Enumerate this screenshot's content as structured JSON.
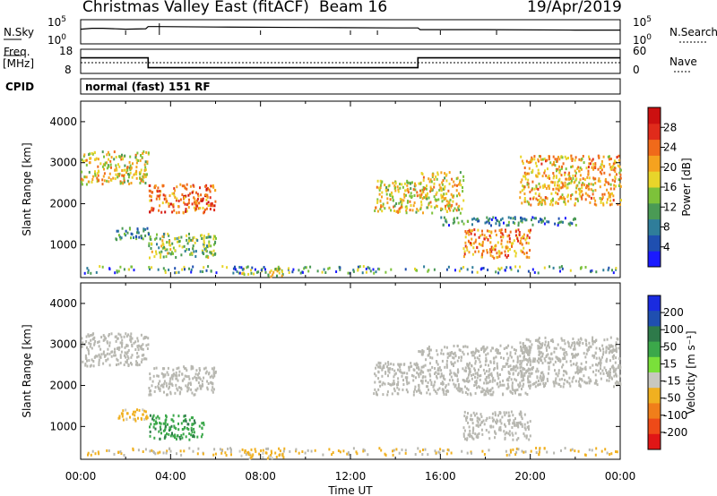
{
  "header": {
    "title": "Christmas Valley East (fitACF)",
    "beam": "Beam 16",
    "date": "19/Apr/2019"
  },
  "strip_labels": {
    "nsky": "N.Sky",
    "freq": "Freq.",
    "mhz": "[MHz]",
    "cpid": "CPID",
    "nsearch": "N.Search",
    "nave": "Nave",
    "mode_text": "normal (fast) 151 RF"
  },
  "colors": {
    "power_scale": [
      "#1a1aff",
      "#1f4fb0",
      "#2f7d9a",
      "#4a9a55",
      "#7dc23a",
      "#e8d52a",
      "#f5a21f",
      "#f06a1a",
      "#e02b1b",
      "#cc1010"
    ],
    "velocity_scale": [
      "#1a2be0",
      "#1f4fb0",
      "#2e7a4a",
      "#3ba84a",
      "#7ae03a",
      "#c8c8c0",
      "#f0b020",
      "#f07e1a",
      "#ee4a18",
      "#e01616"
    ],
    "ground_scatter": "#b7b7b0"
  },
  "chart_data": [
    {
      "type": "line",
      "name": "noise-sky-and-search",
      "yticks": [
        "10^5",
        "10^0"
      ],
      "y2ticks": [
        "10^5",
        "10^0"
      ],
      "series": [
        {
          "name": "N.Sky",
          "x": [
            0,
            0.5,
            1,
            2,
            2.9,
            3.0,
            3.5,
            6,
            10,
            14,
            15,
            15.1,
            18,
            22,
            24
          ],
          "y": [
            3.0,
            3.2,
            3.2,
            3.0,
            3.1,
            3.6,
            3.6,
            3.5,
            3.4,
            3.3,
            3.3,
            2.9,
            2.9,
            2.8,
            2.8
          ]
        }
      ]
    },
    {
      "type": "line",
      "name": "frequency-and-nave",
      "yticks": [
        18,
        8
      ],
      "y2ticks": [
        60,
        0
      ],
      "series": [
        {
          "name": "Freq.",
          "x": [
            0,
            3.0,
            3.0,
            15.0,
            15.0,
            24
          ],
          "y": [
            15,
            15,
            10,
            10,
            15,
            15
          ]
        }
      ]
    },
    {
      "type": "heatmap",
      "name": "power",
      "xlabel": "",
      "ylabel": "Slant Range [km]",
      "yticks": [
        1000,
        2000,
        3000,
        4000
      ],
      "ylim": [
        200,
        4500
      ],
      "xlim": [
        0,
        24
      ],
      "colorbar": {
        "label": "Power [dB]",
        "ticks": [
          4,
          8,
          12,
          16,
          20,
          24,
          28
        ],
        "range": [
          0,
          32
        ]
      },
      "regions": [
        {
          "x": [
            0,
            3
          ],
          "y": [
            2500,
            3300
          ],
          "value": 18
        },
        {
          "x": [
            1.5,
            3
          ],
          "y": [
            1150,
            1450
          ],
          "value": 10
        },
        {
          "x": [
            3,
            6
          ],
          "y": [
            1800,
            2500
          ],
          "value": 24
        },
        {
          "x": [
            3,
            6
          ],
          "y": [
            700,
            1300
          ],
          "value": 14
        },
        {
          "x": [
            7,
            9
          ],
          "y": [
            250,
            450
          ],
          "value": 16
        },
        {
          "x": [
            13,
            15
          ],
          "y": [
            1800,
            2600
          ],
          "value": 18
        },
        {
          "x": [
            15,
            17
          ],
          "y": [
            1800,
            2800
          ],
          "value": 18
        },
        {
          "x": [
            17,
            20
          ],
          "y": [
            700,
            1400
          ],
          "value": 22
        },
        {
          "x": [
            19.5,
            24
          ],
          "y": [
            2000,
            3200
          ],
          "value": 20
        },
        {
          "x": [
            16,
            22
          ],
          "y": [
            1500,
            1700
          ],
          "value": 8
        }
      ]
    },
    {
      "type": "heatmap",
      "name": "velocity",
      "xlabel": "Time UT",
      "ylabel": "Slant Range [km]",
      "yticks": [
        1000,
        2000,
        3000,
        4000
      ],
      "ylim": [
        200,
        4500
      ],
      "xlim": [
        0,
        24
      ],
      "xticks": [
        "00:00",
        "04:00",
        "08:00",
        "12:00",
        "16:00",
        "20:00",
        "00:00"
      ],
      "colorbar": {
        "label": "Velocity [m s⁻¹]",
        "ticks": [
          200,
          100,
          50,
          15,
          -15,
          -50,
          -100,
          -200
        ]
      },
      "regions": [
        {
          "x": [
            0,
            3
          ],
          "y": [
            2500,
            3300
          ],
          "value": 0,
          "ground_scatter": true
        },
        {
          "x": [
            1.5,
            3
          ],
          "y": [
            1150,
            1450
          ],
          "value": -60
        },
        {
          "x": [
            3,
            6
          ],
          "y": [
            1800,
            2500
          ],
          "value": 0,
          "ground_scatter": true
        },
        {
          "x": [
            3,
            5.5
          ],
          "y": [
            700,
            1300
          ],
          "value": 40
        },
        {
          "x": [
            7,
            9
          ],
          "y": [
            250,
            450
          ],
          "value": -60
        },
        {
          "x": [
            13,
            15
          ],
          "y": [
            1800,
            2600
          ],
          "value": 0,
          "ground_scatter": true
        },
        {
          "x": [
            15,
            20
          ],
          "y": [
            1800,
            3000
          ],
          "value": 0,
          "ground_scatter": true
        },
        {
          "x": [
            17,
            20
          ],
          "y": [
            700,
            1400
          ],
          "value": 0,
          "ground_scatter": true
        },
        {
          "x": [
            19.5,
            24
          ],
          "y": [
            2000,
            3200
          ],
          "value": 0,
          "ground_scatter": true
        }
      ]
    }
  ]
}
